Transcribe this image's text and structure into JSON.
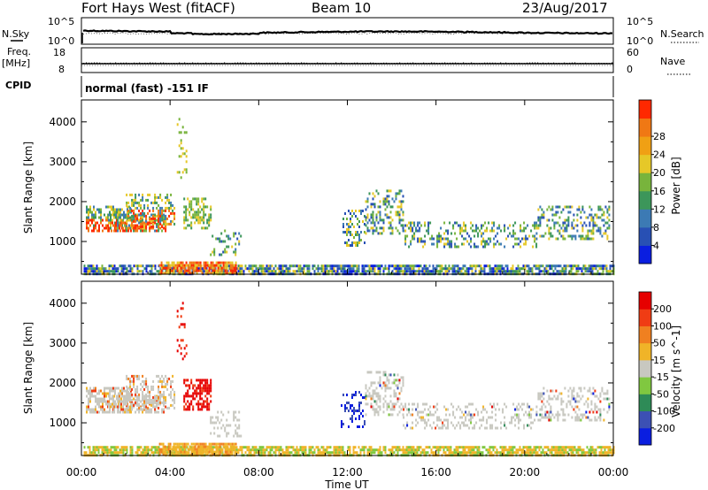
{
  "header": {
    "station": "Fort Hays West (fitACF)",
    "beam": "Beam 10",
    "date": "23/Aug/2017"
  },
  "top_panels": {
    "noise": {
      "left_label": "N.Sky",
      "right_label": "N.Search",
      "left_ticks": [
        "10^5",
        "10^0"
      ],
      "right_ticks": [
        "10^5",
        "10^0"
      ]
    },
    "freq": {
      "left_label_1": "Freq.",
      "left_label_2": "[MHz]",
      "right_label": "Nave",
      "left_ticks": [
        "18",
        "8"
      ],
      "right_ticks": [
        "60",
        "0"
      ]
    },
    "cpid": {
      "label": "CPID",
      "text": "normal (fast) -151 IF"
    }
  },
  "xaxis": {
    "label": "Time UT",
    "ticks": [
      "00:00",
      "04:00",
      "08:00",
      "12:00",
      "16:00",
      "20:00",
      "00:00"
    ]
  },
  "chart_data": [
    {
      "type": "heatmap",
      "ylabel": "Slant Range [km]",
      "yticks": [
        1000,
        2000,
        3000,
        4000
      ],
      "ylim": [
        180,
        4550
      ],
      "xlim_hours": [
        0,
        24
      ],
      "colorbar": {
        "label": "Power [dB]",
        "ticks": [
          4,
          8,
          12,
          16,
          20,
          24,
          28
        ],
        "colors": [
          "#0a1ee0",
          "#2850b4",
          "#3c7ab4",
          "#3c965a",
          "#78b43c",
          "#e6c828",
          "#f0a014",
          "#f07814",
          "#ff2800"
        ]
      }
    },
    {
      "type": "heatmap",
      "ylabel": "Slant Range [km]",
      "yticks": [
        1000,
        2000,
        3000,
        4000
      ],
      "ylim": [
        180,
        4550
      ],
      "xlim_hours": [
        0,
        24
      ],
      "colorbar": {
        "label": "Velocity [m s^-1]",
        "ticks": [
          200,
          100,
          50,
          15,
          -15,
          -50,
          -100,
          -200
        ],
        "colors": [
          "#0a1ee0",
          "#3c50b4",
          "#2e8b57",
          "#80c840",
          "#c8c8c0",
          "#f0b428",
          "#f08020",
          "#f03c14",
          "#e60000"
        ]
      }
    }
  ]
}
